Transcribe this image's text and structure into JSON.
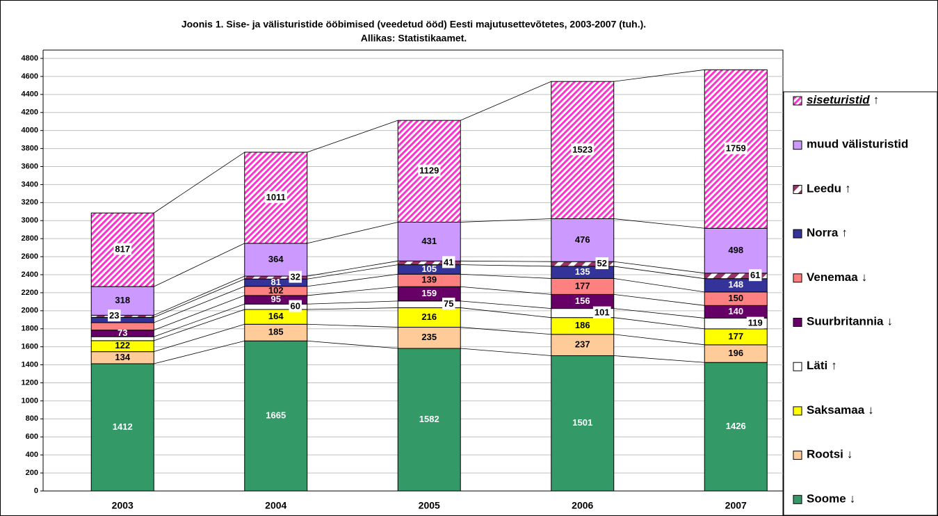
{
  "chart_data": {
    "type": "stacked_bar",
    "title": "Joonis 1. Sise- ja välisturistide ööbimised (veedetud ööd) Eesti majutusettevõtetes, 2003-2007 (tuh.).",
    "subtitle": "Allikas: Statistikaamet.",
    "categories": [
      "2003",
      "2004",
      "2005",
      "2006",
      "2007"
    ],
    "ylim": [
      0,
      4800
    ],
    "yticks": [
      0,
      200,
      400,
      600,
      800,
      1000,
      1200,
      1400,
      1600,
      1800,
      2000,
      2200,
      2400,
      2600,
      2800,
      3000,
      3200,
      3400,
      3600,
      3800,
      4000,
      4200,
      4400,
      4600,
      4800
    ],
    "grid": true,
    "legend": "right",
    "series": [
      {
        "name": "Soome",
        "trend": "↓",
        "color": "#339966",
        "values": [
          1412,
          1665,
          1582,
          1501,
          1426
        ]
      },
      {
        "name": "Rootsi",
        "trend": "↓",
        "color": "#FFCC99",
        "values": [
          134,
          185,
          235,
          237,
          196
        ]
      },
      {
        "name": "Saksamaa",
        "trend": "↓",
        "color": "#FFFF00",
        "values": [
          122,
          164,
          216,
          186,
          177
        ]
      },
      {
        "name": "Läti",
        "trend": "↑",
        "color": "#FFFFFF",
        "values": [
          44,
          60,
          75,
          101,
          119
        ],
        "value_labels": [
          null,
          "60",
          "75",
          "101",
          "119"
        ]
      },
      {
        "name": "Suurbritannia",
        "trend": "↓",
        "color": "#660066",
        "values": [
          73,
          95,
          159,
          156,
          140
        ]
      },
      {
        "name": "Venemaa",
        "trend": "↓",
        "color": "#FF8080",
        "values": [
          83,
          102,
          139,
          177,
          150
        ],
        "value_labels": [
          null,
          "102",
          "139",
          "177",
          "150"
        ]
      },
      {
        "name": "Norra",
        "trend": "↑",
        "color": "#333399",
        "values": [
          59,
          81,
          105,
          135,
          148
        ],
        "value_labels": [
          null,
          "81",
          "105",
          "135",
          "148"
        ]
      },
      {
        "name": "Leedu",
        "trend": "↑",
        "color": "#993366",
        "hatch": true,
        "values": [
          23,
          32,
          41,
          52,
          61
        ]
      },
      {
        "name": "muud välisturistid",
        "color": "#CC99FF",
        "values": [
          318,
          364,
          431,
          476,
          498
        ]
      },
      {
        "name": "siseturistid",
        "trend": "↑",
        "color": "#FF33CC",
        "hatch": true,
        "values": [
          817,
          1011,
          1129,
          1523,
          1759
        ]
      }
    ]
  }
}
